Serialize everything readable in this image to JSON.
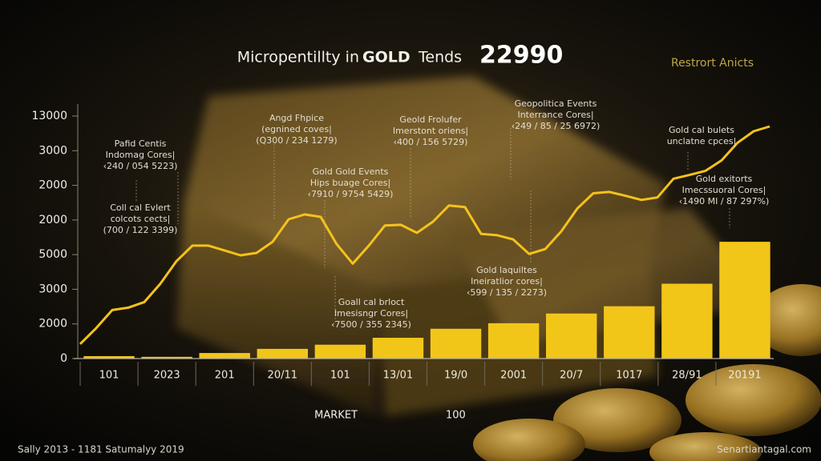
{
  "chart_data": {
    "type": "bar",
    "title_parts": [
      "Micropentillty in",
      "GOLD",
      "Tends"
    ],
    "title_number": "22990",
    "subtitle_right": "Restrort Anicts",
    "footer_left": "Sally 2013 - 1181 Satumalyy 2019",
    "footer_right": "Senartiantagal.com",
    "categories": [
      "101",
      "2023",
      "201",
      "20/11",
      "101",
      "13/01",
      "19/0",
      "2001",
      "20/7",
      "1017",
      "28/91",
      "20191"
    ],
    "values": [
      0.07,
      0.05,
      0.16,
      0.28,
      0.4,
      0.6,
      0.86,
      1.02,
      1.3,
      1.51,
      2.16,
      3.37
    ],
    "color": "#f2c619",
    "ylim": [
      0,
      7
    ],
    "yticks": [
      0,
      {
        "value": 1,
        "label": "2000"
      },
      {
        "value": 2,
        "label": "3000"
      },
      {
        "value": 3,
        "label": "5000"
      },
      {
        "value": 4,
        "label": "2000"
      },
      {
        "value": 5,
        "label": "2000"
      },
      {
        "value": 6,
        "label": "3000"
      },
      {
        "value": 7,
        "label": "13000"
      }
    ],
    "line": {
      "type": "line",
      "name": "MARKET",
      "legend_text": "100",
      "color": "#f5c21b",
      "values": [
        0.42,
        0.88,
        1.4,
        1.47,
        1.63,
        2.16,
        2.81,
        3.26,
        3.26,
        3.12,
        2.98,
        3.05,
        3.37,
        4.02,
        4.16,
        4.09,
        3.3,
        2.74,
        3.26,
        3.84,
        3.86,
        3.63,
        3.95,
        4.42,
        4.37,
        3.6,
        3.56,
        3.44,
        3.02,
        3.16,
        3.67,
        4.33,
        4.77,
        4.81,
        4.7,
        4.58,
        4.65,
        5.19,
        5.3,
        5.42,
        5.72,
        6.23,
        6.56,
        6.7
      ]
    },
    "annotations": [
      [
        "Pafid Centis",
        "Indomag Cores|",
        "‹240 / 054 5223)"
      ],
      [
        "Coll cal Evlert",
        "colcots cects|",
        "(700 / 122 3399)"
      ],
      [
        "Angd Fhpice",
        "(egnined coves|",
        "(Q300 / 234 1279)"
      ],
      [
        "Gold Gold Events",
        "Hips buage Cores|",
        "‹7910 / 9754 5429)"
      ],
      [
        "Geold Frolufer",
        "Imerstont oriens|",
        "‹400 / 156 5729)"
      ],
      [
        "Geopolitica Events",
        "Interrance Cores|",
        "‹249 / 85 / 25 6972)"
      ],
      [
        "Gold cal bulets",
        "unclatne cpces|"
      ],
      [
        "Gold exitorts",
        "Imecssuoral Cores|",
        "‹1490 MI / 87 297%)"
      ],
      [
        "Gold laquiltes",
        "Ineiratlior cores|",
        "‹599 / 135 / 2273)"
      ],
      [
        "Goall cal brloct",
        "Imesisngr Cores|",
        "‹7500 / 355 2345)"
      ]
    ]
  }
}
